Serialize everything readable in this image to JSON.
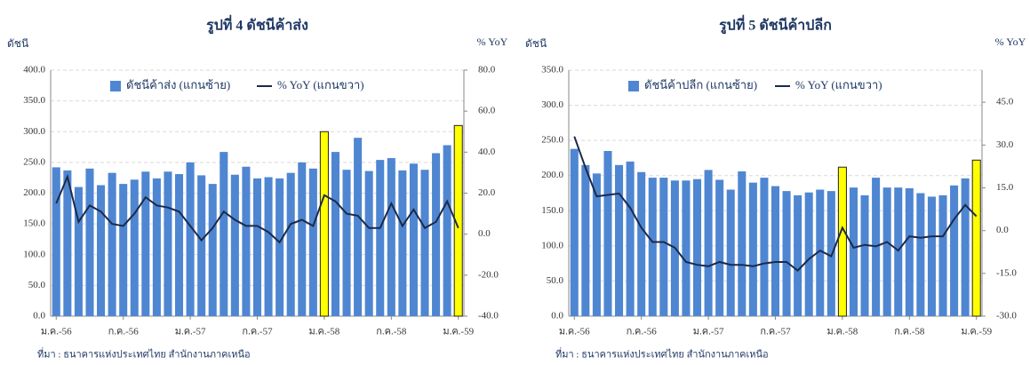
{
  "chart_data": [
    {
      "type": "bar",
      "title": "รูปที่ 4 ดัชนีค้าส่ง",
      "y_label": "ดัชนี",
      "y2_label": "% YoY",
      "categories": [
        "ม.ค.-56",
        null,
        null,
        null,
        null,
        null,
        "ก.ค.-56",
        null,
        null,
        null,
        null,
        null,
        "ม.ค.-57",
        null,
        null,
        null,
        null,
        null,
        "ก.ค.-57",
        null,
        null,
        null,
        null,
        null,
        "ม.ค.-58",
        null,
        null,
        null,
        null,
        null,
        "ก.ค.-58",
        null,
        null,
        null,
        null,
        null,
        "ม.ค.-59"
      ],
      "series": [
        {
          "name": "ดัชนีค้าส่ง (แกนซ้าย)",
          "type": "bar",
          "color": "#4f86d2",
          "highlight": {
            "indices": [
              24,
              36
            ],
            "color": "#ffff00"
          },
          "values": [
            242,
            237,
            210,
            240,
            213,
            233,
            215,
            222,
            235,
            224,
            235,
            231,
            250,
            229,
            215,
            267,
            230,
            243,
            224,
            226,
            224,
            233,
            250,
            240,
            300,
            267,
            238,
            290,
            236,
            254,
            257,
            237,
            248,
            238,
            265,
            278,
            310
          ]
        },
        {
          "name": "% YoY (แกนขวา)",
          "type": "line",
          "axis": "y2",
          "color": "#1c2a48",
          "values": [
            15,
            28,
            6,
            14,
            11,
            5,
            4,
            10,
            18,
            14,
            13,
            11,
            4,
            -3,
            3,
            11,
            7,
            4,
            4,
            1,
            -4,
            5,
            7,
            4,
            19,
            16,
            10,
            9,
            3,
            3,
            15,
            4,
            12,
            3,
            6,
            16,
            3
          ]
        }
      ],
      "ylim": [
        0,
        400
      ],
      "yticks": [
        {
          "value": 0,
          "label": "0.0"
        },
        {
          "value": 50,
          "label": "50.0"
        },
        {
          "value": 100,
          "label": "100.0"
        },
        {
          "value": 150,
          "label": "150.0"
        },
        {
          "value": 200,
          "label": "200.0"
        },
        {
          "value": 250,
          "label": "250.0"
        },
        {
          "value": 300,
          "label": "300.0"
        },
        {
          "value": 350,
          "label": "350.0"
        },
        {
          "value": 400,
          "label": "400.0"
        }
      ],
      "y2lim": [
        -40,
        80
      ],
      "y2ticks": [
        {
          "value": -40,
          "label": "-40.0"
        },
        {
          "value": -20,
          "label": "-20.0"
        },
        {
          "value": 0,
          "label": "0.0"
        },
        {
          "value": 20,
          "label": "20.0"
        },
        {
          "value": 40,
          "label": "40.0"
        },
        {
          "value": 60,
          "label": "60.0"
        },
        {
          "value": 80,
          "label": "80.0"
        }
      ],
      "grid": true,
      "source": "ที่มา : ธนาคารแห่งประเทศไทย  สำนักงานภาคเหนือ"
    },
    {
      "type": "bar",
      "title": "รูปที่ 5 ดัชนีค้าปลีก",
      "y_label": "ดัชนี",
      "y2_label": "% YoY",
      "categories": [
        "ม.ค.-56",
        null,
        null,
        null,
        null,
        null,
        "ก.ค.-56",
        null,
        null,
        null,
        null,
        null,
        "ม.ค.-57",
        null,
        null,
        null,
        null,
        null,
        "ก.ค.-57",
        null,
        null,
        null,
        null,
        null,
        "ม.ค.-58",
        null,
        null,
        null,
        null,
        null,
        "ก.ค.-58",
        null,
        null,
        null,
        null,
        null,
        "ม.ค.-59"
      ],
      "series": [
        {
          "name": "ดัชนีค้าปลีก (แกนซ้าย)",
          "type": "bar",
          "color": "#4f86d2",
          "highlight": {
            "indices": [
              24,
              36
            ],
            "color": "#ffff00"
          },
          "values": [
            238,
            215,
            203,
            235,
            215,
            220,
            205,
            197,
            197,
            193,
            193,
            195,
            208,
            194,
            180,
            206,
            190,
            197,
            185,
            178,
            172,
            176,
            180,
            178,
            212,
            183,
            172,
            197,
            183,
            183,
            182,
            175,
            170,
            172,
            186,
            196,
            222
          ]
        },
        {
          "name": "% YoY (แกนขวา)",
          "type": "line",
          "axis": "y2",
          "color": "#1c2a48",
          "values": [
            33,
            22,
            12,
            12.5,
            13,
            8,
            1,
            -4,
            -4,
            -6,
            -11,
            -12,
            -12.5,
            -11,
            -12,
            -12,
            -12.5,
            -11.5,
            -11,
            -11,
            -14,
            -10,
            -7,
            -9,
            1,
            -6,
            -5,
            -5.5,
            -4,
            -7,
            -2,
            -2.5,
            -2,
            -2,
            4,
            9,
            5
          ]
        }
      ],
      "ylim": [
        0,
        350
      ],
      "yticks": [
        {
          "value": 0,
          "label": "0.0"
        },
        {
          "value": 50,
          "label": "50.0"
        },
        {
          "value": 100,
          "label": "100.0"
        },
        {
          "value": 150,
          "label": "150.0"
        },
        {
          "value": 200,
          "label": "200.0"
        },
        {
          "value": 250,
          "label": "250.0"
        },
        {
          "value": 300,
          "label": "300.0"
        },
        {
          "value": 350,
          "label": "350.0"
        }
      ],
      "y2lim": [
        -30,
        56.25
      ],
      "y2ticks": [
        {
          "value": -30,
          "label": "-30.0"
        },
        {
          "value": -15,
          "label": "-15.0"
        },
        {
          "value": 0,
          "label": "0.0"
        },
        {
          "value": 15,
          "label": "15.0"
        },
        {
          "value": 30,
          "label": "30.0"
        },
        {
          "value": 45,
          "label": "45.0"
        }
      ],
      "grid": true,
      "source": "ที่มา : ธนาคารแห่งประเทศไทย  สำนักงานภาคเหนือ"
    }
  ]
}
